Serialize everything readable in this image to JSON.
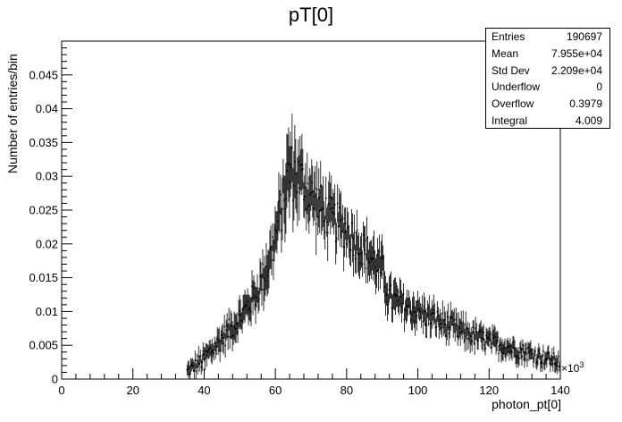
{
  "chart_data": {
    "type": "histogram",
    "title": "pT[0]",
    "xlabel": "photon_pt[0]",
    "ylabel": "Number of entries/bin",
    "x_multiplier": "×10",
    "x_multiplier_exp": "3",
    "xlim": [
      0,
      140
    ],
    "ylim": [
      0,
      0.05
    ],
    "x_ticks": [
      "0",
      "20",
      "40",
      "60",
      "80",
      "100",
      "120",
      "140"
    ],
    "y_ticks": [
      "0",
      "0.005",
      "0.01",
      "0.015",
      "0.02",
      "0.025",
      "0.03",
      "0.035",
      "0.04",
      "0.045"
    ],
    "grid": false,
    "stats_box": {
      "placement": "top-right",
      "rows": [
        {
          "label": "Entries",
          "value": "190697"
        },
        {
          "label": "Mean",
          "value": "7.955e+04"
        },
        {
          "label": "Std Dev",
          "value": "2.209e+04"
        },
        {
          "label": "Underflow",
          "value": "0"
        },
        {
          "label": "Overflow",
          "value": "0.3979"
        },
        {
          "label": "Integral",
          "value": "4.009"
        }
      ]
    },
    "profile_x": [
      35,
      40,
      45,
      50,
      55,
      58,
      60,
      62,
      64,
      66,
      68,
      70,
      75,
      80,
      85,
      90,
      92,
      95,
      100,
      110,
      120,
      130,
      140
    ],
    "profile_y": [
      0.001,
      0.003,
      0.006,
      0.009,
      0.013,
      0.017,
      0.021,
      0.026,
      0.031,
      0.03,
      0.029,
      0.027,
      0.024,
      0.022,
      0.019,
      0.016,
      0.012,
      0.011,
      0.01,
      0.0075,
      0.0055,
      0.004,
      0.0025
    ],
    "profile_err": [
      0.001,
      0.0015,
      0.0018,
      0.002,
      0.0025,
      0.003,
      0.0035,
      0.004,
      0.005,
      0.0045,
      0.004,
      0.004,
      0.0035,
      0.0032,
      0.003,
      0.0028,
      0.0025,
      0.0023,
      0.002,
      0.0018,
      0.0015,
      0.0013,
      0.0012
    ]
  }
}
